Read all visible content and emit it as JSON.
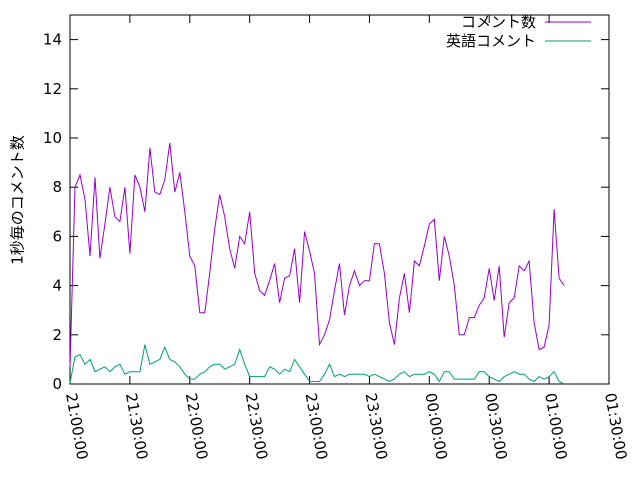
{
  "chart_data": {
    "type": "line",
    "ylabel": "1秒毎のコメント数",
    "x": [
      "21:00:00",
      "21:02:30",
      "21:05:00",
      "21:07:30",
      "21:10:00",
      "21:12:30",
      "21:15:00",
      "21:17:30",
      "21:20:00",
      "21:22:30",
      "21:25:00",
      "21:27:30",
      "21:30:00",
      "21:32:30",
      "21:35:00",
      "21:37:30",
      "21:40:00",
      "21:42:30",
      "21:45:00",
      "21:47:30",
      "21:50:00",
      "21:52:30",
      "21:55:00",
      "21:57:30",
      "22:00:00",
      "22:02:30",
      "22:05:00",
      "22:07:30",
      "22:10:00",
      "22:12:30",
      "22:15:00",
      "22:17:30",
      "22:20:00",
      "22:22:30",
      "22:25:00",
      "22:27:30",
      "22:30:00",
      "22:32:30",
      "22:35:00",
      "22:37:30",
      "22:40:00",
      "22:42:30",
      "22:45:00",
      "22:47:30",
      "22:50:00",
      "22:52:30",
      "22:55:00",
      "22:57:30",
      "23:00:00",
      "23:02:30",
      "23:05:00",
      "23:07:30",
      "23:10:00",
      "23:12:30",
      "23:15:00",
      "23:17:30",
      "23:20:00",
      "23:22:30",
      "23:25:00",
      "23:27:30",
      "23:30:00",
      "23:32:30",
      "23:35:00",
      "23:37:30",
      "23:40:00",
      "23:42:30",
      "23:45:00",
      "23:47:30",
      "23:50:00",
      "23:52:30",
      "23:55:00",
      "23:57:30",
      "00:00:00",
      "00:02:30",
      "00:05:00",
      "00:07:30",
      "00:10:00",
      "00:12:30",
      "00:15:00",
      "00:17:30",
      "00:20:00",
      "00:22:30",
      "00:25:00",
      "00:27:30",
      "00:30:00",
      "00:32:30",
      "00:35:00",
      "00:37:30",
      "00:40:00",
      "00:42:30",
      "00:45:00",
      "00:47:30",
      "00:50:00",
      "00:52:30",
      "00:55:00",
      "00:57:30",
      "01:00:00",
      "01:02:30",
      "01:05:00",
      "01:07:30"
    ],
    "series": [
      {
        "name": "コメント数",
        "color": "#9400d3",
        "values": [
          0.7,
          8,
          8.5,
          7.5,
          5.2,
          8.4,
          5.1,
          6.5,
          8,
          6.8,
          6.6,
          8,
          5.3,
          8.5,
          8,
          7,
          9.6,
          7.8,
          7.7,
          8.3,
          9.8,
          7.8,
          8.6,
          7,
          5.2,
          4.8,
          2.9,
          2.9,
          4.5,
          6.3,
          7.7,
          6.8,
          5.5,
          4.7,
          6,
          5.7,
          7,
          4.5,
          3.8,
          3.6,
          4.2,
          4.9,
          3.3,
          4.3,
          4.4,
          5.5,
          3.3,
          6.2,
          5.4,
          4.5,
          1.6,
          2,
          2.6,
          3.8,
          4.9,
          2.8,
          4,
          4.6,
          4,
          4.2,
          4.2,
          5.7,
          5.7,
          4.5,
          2.5,
          1.6,
          3.5,
          4.5,
          2.9,
          5,
          4.8,
          5.6,
          6.5,
          6.7,
          4.2,
          6,
          5.2,
          4,
          2,
          2,
          2.7,
          2.7,
          3.2,
          3.5,
          4.7,
          3.4,
          4.8,
          1.9,
          3.3,
          3.5,
          4.8,
          4.6,
          5,
          2.5,
          1.4,
          1.5,
          2.4,
          7.1,
          4.3,
          4
        ]
      },
      {
        "name": "英語コメント",
        "color": "#009e73",
        "values": [
          0.05,
          1.1,
          1.2,
          0.8,
          1,
          0.5,
          0.6,
          0.7,
          0.5,
          0.7,
          0.8,
          0.4,
          0.5,
          0.5,
          0.5,
          1.6,
          0.8,
          0.9,
          1,
          1.5,
          1,
          0.9,
          0.7,
          0.4,
          0.2,
          0.2,
          0.4,
          0.5,
          0.7,
          0.8,
          0.8,
          0.6,
          0.7,
          0.8,
          1.4,
          0.8,
          0.3,
          0.3,
          0.3,
          0.3,
          0.7,
          0.6,
          0.4,
          0.6,
          0.5,
          1,
          0.7,
          0.4,
          0.1,
          0.1,
          0.1,
          0.4,
          0.8,
          0.3,
          0.4,
          0.3,
          0.4,
          0.4,
          0.4,
          0.4,
          0.3,
          0.4,
          0.3,
          0.2,
          0.1,
          0.2,
          0.4,
          0.5,
          0.3,
          0.4,
          0.4,
          0.4,
          0.5,
          0.4,
          0.1,
          0.5,
          0.5,
          0.2,
          0.2,
          0.2,
          0.2,
          0.2,
          0.5,
          0.5,
          0.3,
          0.2,
          0.1,
          0.3,
          0.4,
          0.5,
          0.4,
          0.4,
          0.2,
          0.1,
          0.3,
          0.2,
          0.3,
          0.5,
          0.1,
          0
        ]
      }
    ],
    "xlim": [
      "21:00:00",
      "01:30:00"
    ],
    "xticks": [
      "21:00:00",
      "21:30:00",
      "22:00:00",
      "22:30:00",
      "23:00:00",
      "23:30:00",
      "00:00:00",
      "00:30:00",
      "01:00:00",
      "01:30:00"
    ],
    "ylim": [
      0,
      15
    ],
    "yticks": [
      0,
      2,
      4,
      6,
      8,
      10,
      12,
      14
    ],
    "grid": false,
    "legend": "top-right"
  }
}
